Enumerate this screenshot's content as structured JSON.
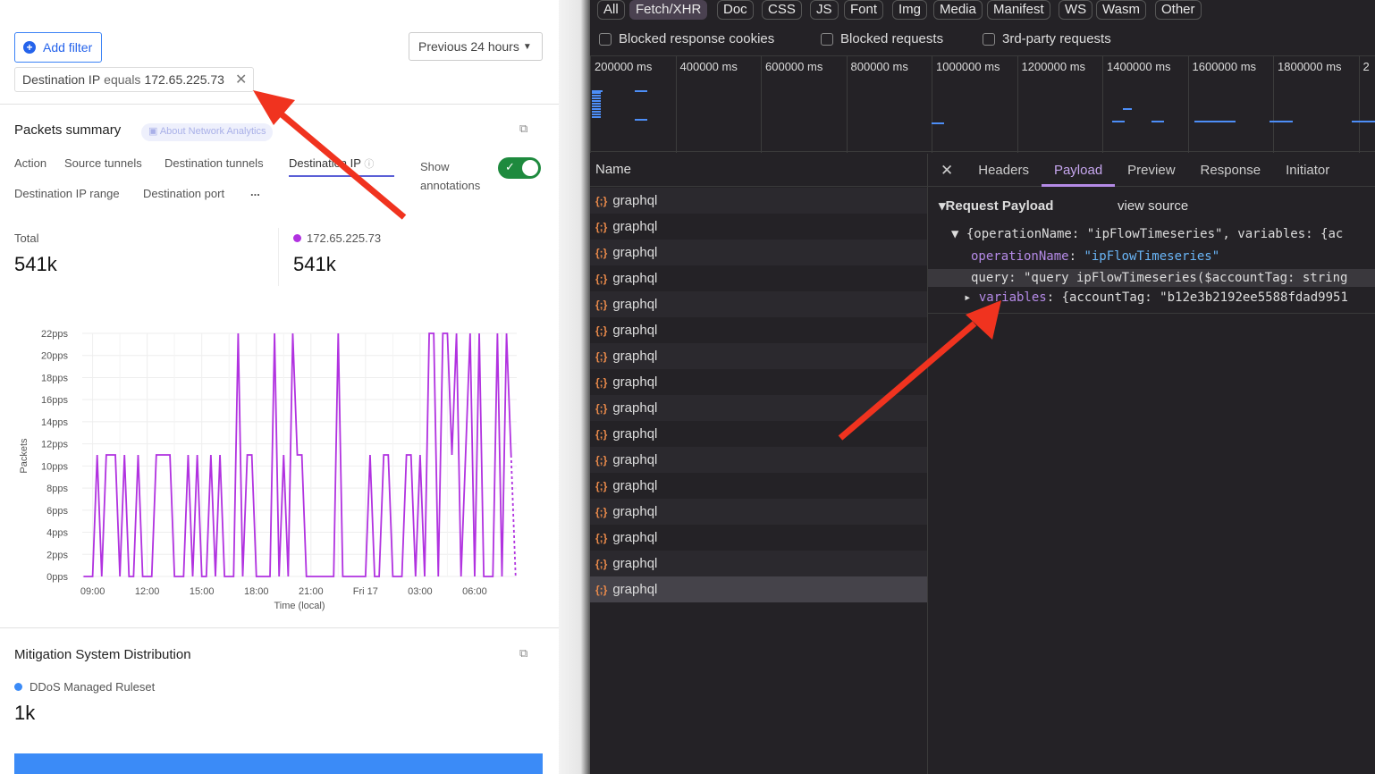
{
  "left": {
    "add_filter": "Add filter",
    "time_range": "Previous 24 hours",
    "filter_chip": {
      "field": "Destination IP",
      "operator": "equals",
      "value": "172.65.225.73"
    },
    "packets_summary": {
      "title": "Packets summary",
      "about_link": "About Network Analytics",
      "tabs": [
        "Action",
        "Source tunnels",
        "Destination tunnels",
        "Destination IP",
        "Destination IP range",
        "Destination port",
        "..."
      ],
      "active_tab": "Destination IP",
      "show_annotations_line1": "Show",
      "show_annotations_line2": "annotations",
      "show_annotations_on": true,
      "total_label": "Total",
      "total_value": "541k",
      "series_label": "172.65.225.73",
      "series_value": "541k",
      "series_color": "#b132e0"
    },
    "mitigation": {
      "title": "Mitigation System Distribution",
      "legend": "DDoS Managed Ruleset",
      "value": "1k",
      "color": "#3b8bf7"
    }
  },
  "chart_data": {
    "type": "line",
    "xlabel": "Time (local)",
    "ylabel": "Packets",
    "ylim": [
      0,
      22
    ],
    "yticks": [
      "0pps",
      "2pps",
      "4pps",
      "6pps",
      "8pps",
      "10pps",
      "12pps",
      "14pps",
      "16pps",
      "18pps",
      "20pps",
      "22pps"
    ],
    "xticks": [
      "09:00",
      "12:00",
      "15:00",
      "18:00",
      "21:00",
      "Fri 17",
      "03:00",
      "06:00"
    ],
    "grid": true,
    "color": "#b132e0",
    "last_segment_dashed": true,
    "points": [
      [
        "16 08:30",
        0
      ],
      [
        "16 09:00",
        0
      ],
      [
        "16 09:15",
        11
      ],
      [
        "16 09:30",
        0
      ],
      [
        "16 09:45",
        11
      ],
      [
        "16 10:15",
        11
      ],
      [
        "16 10:30",
        0
      ],
      [
        "16 10:45",
        11
      ],
      [
        "16 11:00",
        0
      ],
      [
        "16 11:15",
        0
      ],
      [
        "16 11:30",
        11
      ],
      [
        "16 11:45",
        0
      ],
      [
        "16 12:15",
        0
      ],
      [
        "16 12:30",
        11
      ],
      [
        "16 13:15",
        11
      ],
      [
        "16 13:30",
        0
      ],
      [
        "16 14:00",
        0
      ],
      [
        "16 14:15",
        11
      ],
      [
        "16 14:30",
        0
      ],
      [
        "16 14:45",
        11
      ],
      [
        "16 15:00",
        0
      ],
      [
        "16 15:15",
        0
      ],
      [
        "16 15:30",
        11
      ],
      [
        "16 15:45",
        0
      ],
      [
        "16 16:00",
        11
      ],
      [
        "16 16:15",
        0
      ],
      [
        "16 16:45",
        0
      ],
      [
        "16 17:00",
        22
      ],
      [
        "16 17:15",
        0
      ],
      [
        "16 17:30",
        11
      ],
      [
        "16 17:45",
        11
      ],
      [
        "16 18:00",
        0
      ],
      [
        "16 18:45",
        0
      ],
      [
        "16 19:00",
        22
      ],
      [
        "16 19:15",
        0
      ],
      [
        "16 19:30",
        11
      ],
      [
        "16 19:45",
        0
      ],
      [
        "16 20:00",
        22
      ],
      [
        "16 20:15",
        11
      ],
      [
        "16 20:30",
        11
      ],
      [
        "16 20:45",
        0
      ],
      [
        "16 22:15",
        0
      ],
      [
        "16 22:30",
        22
      ],
      [
        "16 22:45",
        0
      ],
      [
        "17 00:00",
        0
      ],
      [
        "17 00:15",
        11
      ],
      [
        "17 00:30",
        0
      ],
      [
        "17 00:45",
        0
      ],
      [
        "17 01:00",
        11
      ],
      [
        "17 01:15",
        11
      ],
      [
        "17 01:30",
        0
      ],
      [
        "17 02:00",
        0
      ],
      [
        "17 02:15",
        11
      ],
      [
        "17 02:30",
        11
      ],
      [
        "17 02:45",
        0
      ],
      [
        "17 03:00",
        11
      ],
      [
        "17 03:15",
        0
      ],
      [
        "17 03:30",
        22
      ],
      [
        "17 03:45",
        22
      ],
      [
        "17 04:00",
        0
      ],
      [
        "17 04:15",
        22
      ],
      [
        "17 04:30",
        22
      ],
      [
        "17 04:45",
        11
      ],
      [
        "17 05:00",
        22
      ],
      [
        "17 05:15",
        0
      ],
      [
        "17 05:30",
        11
      ],
      [
        "17 05:45",
        22
      ],
      [
        "17 06:00",
        0
      ],
      [
        "17 06:15",
        22
      ],
      [
        "17 06:30",
        0
      ],
      [
        "17 07:00",
        0
      ],
      [
        "17 07:15",
        22
      ],
      [
        "17 07:30",
        0
      ],
      [
        "17 07:45",
        22
      ],
      [
        "17 08:00",
        11
      ],
      [
        "17 08:15",
        0
      ]
    ]
  },
  "devtools": {
    "filters": [
      "All",
      "Fetch/XHR",
      "Doc",
      "CSS",
      "JS",
      "Font",
      "Img",
      "Media",
      "Manifest",
      "WS",
      "Wasm",
      "Other"
    ],
    "active_filter": "Fetch/XHR",
    "checkboxes": [
      "Blocked response cookies",
      "Blocked requests",
      "3rd-party requests"
    ],
    "timeline_ticks": [
      "200000 ms",
      "400000 ms",
      "600000 ms",
      "800000 ms",
      "1000000 ms",
      "1200000 ms",
      "1400000 ms",
      "1600000 ms",
      "1800000 ms",
      "2"
    ],
    "name_header": "Name",
    "requests": [
      "graphql",
      "graphql",
      "graphql",
      "graphql",
      "graphql",
      "graphql",
      "graphql",
      "graphql",
      "graphql",
      "graphql",
      "graphql",
      "graphql",
      "graphql",
      "graphql",
      "graphql",
      "graphql"
    ],
    "selected_request": 15,
    "close": "✕",
    "tabs": [
      "Headers",
      "Payload",
      "Preview",
      "Response",
      "Initiator"
    ],
    "active_tab": "Payload",
    "payload": {
      "title": "Request Payload",
      "view_source": "view source",
      "summary": "{operationName: \"ipFlowTimeseries\", variables: {ac",
      "op_key": "operationName",
      "op_val": "\"ipFlowTimeseries\"",
      "query": "query: \"query ipFlowTimeseries($accountTag: string",
      "var_key": "variables",
      "var_val": "{accountTag: \"b12e3b2192ee5588fdad9951"
    }
  }
}
